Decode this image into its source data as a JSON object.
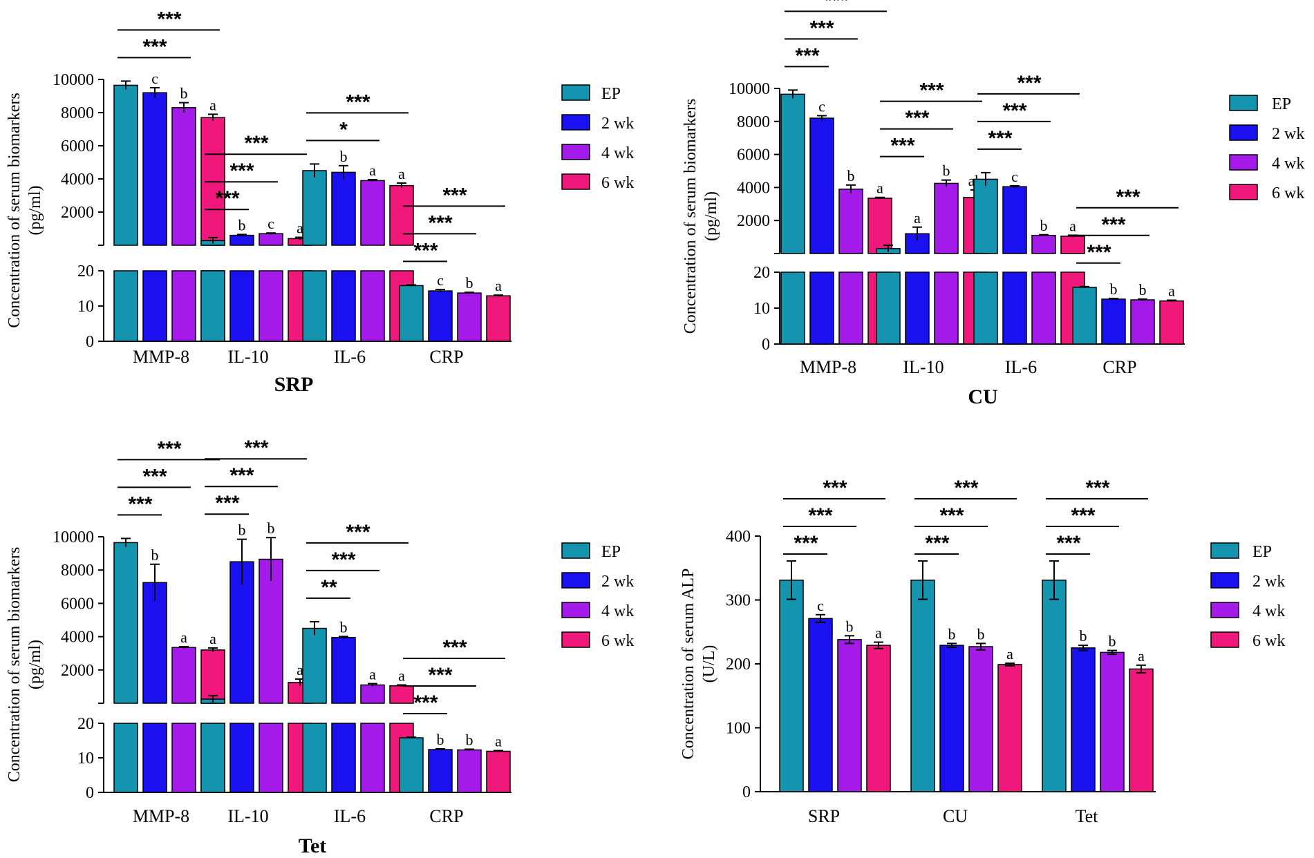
{
  "colors": {
    "EP": "#1494ae",
    "2 wk": "#1a10f0",
    "4 wk": "#a41ae8",
    "6 wk": "#f0187a"
  },
  "chart_data": [
    {
      "type": "bar",
      "title": "SRP",
      "ylabel": "Concentration of serum biomarkers (pg/ml)",
      "ylabel_lines": [
        "Concentration of serum biomarkers",
        "(pg/ml)"
      ],
      "categories": [
        "MMP-8",
        "IL-10",
        "IL-6",
        "CRP"
      ],
      "upper_ticks": [
        "10000",
        "8000",
        "6000",
        "4000",
        "2000"
      ],
      "lower_ticks": [
        "20",
        "10",
        "0"
      ],
      "series": [
        {
          "name": "EP",
          "values": [
            9650,
            280,
            4500,
            15.8
          ],
          "errors": [
            250,
            180,
            400,
            0.2
          ]
        },
        {
          "name": "2 wk",
          "values": [
            9200,
            600,
            4400,
            14.3
          ],
          "errors": [
            300,
            50,
            400,
            0.4
          ]
        },
        {
          "name": "4 wk",
          "values": [
            8300,
            700,
            3900,
            13.7
          ],
          "errors": [
            300,
            40,
            60,
            0.2
          ]
        },
        {
          "name": "6 wk",
          "values": [
            7700,
            400,
            3600,
            12.9
          ],
          "errors": [
            200,
            80,
            150,
            0.2
          ]
        }
      ],
      "letters": [
        [
          "",
          "c",
          "b",
          "a"
        ],
        [
          "",
          "b",
          "c",
          "a"
        ],
        [
          "",
          "b",
          "a",
          "a"
        ],
        [
          "",
          "c",
          "b",
          "a"
        ]
      ],
      "significance": [
        {
          "category": 0,
          "marks": [
            "***",
            "***"
          ]
        },
        {
          "category": 1,
          "marks": [
            "***",
            "***",
            "***"
          ]
        },
        {
          "category": 2,
          "marks": [
            "*",
            "***"
          ]
        },
        {
          "category": 3,
          "marks": [
            "***",
            "***",
            "***"
          ]
        }
      ],
      "legend": [
        "EP",
        "2 wk",
        "4 wk",
        "6 wk"
      ]
    },
    {
      "type": "bar",
      "title": "CU",
      "ylabel": "Concentration of serum biomarkers (pg/ml)",
      "ylabel_lines": [
        "Concentration of serum biomarkers",
        "(pg/ml)"
      ],
      "categories": [
        "MMP-8",
        "IL-10",
        "IL-6",
        "CRP"
      ],
      "upper_ticks": [
        "10000",
        "8000",
        "6000",
        "4000",
        "2000"
      ],
      "lower_ticks": [
        "20",
        "10",
        "0"
      ],
      "series": [
        {
          "name": "EP",
          "values": [
            9650,
            300,
            4500,
            15.8
          ],
          "errors": [
            250,
            200,
            400,
            0.2
          ]
        },
        {
          "name": "2 wk",
          "values": [
            8200,
            1200,
            4050,
            12.5
          ],
          "errors": [
            150,
            400,
            50,
            0.2
          ]
        },
        {
          "name": "4 wk",
          "values": [
            3900,
            4250,
            1100,
            12.3
          ],
          "errors": [
            250,
            200,
            40,
            0.2
          ]
        },
        {
          "name": "6 wk",
          "values": [
            3350,
            3400,
            1050,
            12.0
          ],
          "errors": [
            50,
            450,
            60,
            0.2
          ]
        }
      ],
      "letters": [
        [
          "",
          "c",
          "b",
          "a"
        ],
        [
          "",
          "a",
          "b",
          "ab"
        ],
        [
          "",
          "c",
          "b",
          "a"
        ],
        [
          "",
          "b",
          "b",
          "a"
        ]
      ],
      "significance": [
        {
          "category": 0,
          "marks": [
            "***",
            "***",
            "***"
          ]
        },
        {
          "category": 1,
          "marks": [
            "***",
            "***",
            "***"
          ]
        },
        {
          "category": 2,
          "marks": [
            "***",
            "***",
            "***"
          ]
        },
        {
          "category": 3,
          "marks": [
            "***",
            "***",
            "***"
          ]
        }
      ],
      "legend": [
        "EP",
        "2 wk",
        "4 wk",
        "6 wk"
      ]
    },
    {
      "type": "bar",
      "title": "Tet",
      "ylabel": "Concentration of serum biomarkers (pg/ml)",
      "ylabel_lines": [
        "Concentration of serum biomarkers",
        "(pg/ml)"
      ],
      "categories": [
        "MMP-8",
        "IL-10",
        "IL-6",
        "CRP"
      ],
      "upper_ticks": [
        "10000",
        "8000",
        "6000",
        "4000",
        "2000"
      ],
      "lower_ticks": [
        "20",
        "10",
        "0"
      ],
      "series": [
        {
          "name": "EP",
          "values": [
            9650,
            250,
            4500,
            15.8
          ],
          "errors": [
            250,
            200,
            400,
            0.2
          ]
        },
        {
          "name": "2 wk",
          "values": [
            7250,
            8500,
            3950,
            12.4
          ],
          "errors": [
            1100,
            1350,
            60,
            0.2
          ]
        },
        {
          "name": "4 wk",
          "values": [
            3350,
            8650,
            1100,
            12.3
          ],
          "errors": [
            50,
            1300,
            80,
            0.2
          ]
        },
        {
          "name": "6 wk",
          "values": [
            3200,
            1250,
            1050,
            11.9
          ],
          "errors": [
            120,
            200,
            50,
            0.2
          ]
        }
      ],
      "letters": [
        [
          "",
          "b",
          "a",
          "a"
        ],
        [
          "",
          "b",
          "b",
          "a"
        ],
        [
          "",
          "b",
          "a",
          "a"
        ],
        [
          "",
          "b",
          "b",
          "a"
        ]
      ],
      "significance": [
        {
          "category": 0,
          "marks": [
            "***",
            "***",
            "***"
          ]
        },
        {
          "category": 1,
          "marks": [
            "***",
            "***",
            "***"
          ]
        },
        {
          "category": 2,
          "marks": [
            "**",
            "***",
            "***"
          ]
        },
        {
          "category": 3,
          "marks": [
            "***",
            "***",
            "***"
          ]
        }
      ],
      "legend": [
        "EP",
        "2 wk",
        "4 wk",
        "6 wk"
      ]
    },
    {
      "type": "bar",
      "title": "",
      "ylabel": "Concentration of serum ALP (U/L)",
      "ylabel_lines": [
        "Concentration of serum ALP",
        "(U/L)"
      ],
      "categories": [
        "SRP",
        "CU",
        "Tet"
      ],
      "ylim": [
        0,
        400
      ],
      "yticks": [
        "0",
        "100",
        "200",
        "300",
        "400"
      ],
      "series": [
        {
          "name": "EP",
          "values": [
            331,
            331,
            331
          ],
          "errors": [
            30,
            30,
            30
          ]
        },
        {
          "name": "2 wk",
          "values": [
            271,
            229,
            225
          ],
          "errors": [
            6,
            3,
            4
          ]
        },
        {
          "name": "4 wk",
          "values": [
            238,
            227,
            218
          ],
          "errors": [
            6,
            5,
            3
          ]
        },
        {
          "name": "6 wk",
          "values": [
            229,
            199,
            192
          ],
          "errors": [
            5,
            2,
            6
          ]
        }
      ],
      "letters": [
        [
          "",
          "c",
          "b",
          "a"
        ],
        [
          "",
          "b",
          "b",
          "a"
        ],
        [
          "",
          "b",
          "b",
          "a"
        ]
      ],
      "significance": [
        {
          "category": 0,
          "marks": [
            "***",
            "***",
            "***"
          ]
        },
        {
          "category": 1,
          "marks": [
            "***",
            "***",
            "***"
          ]
        },
        {
          "category": 2,
          "marks": [
            "***",
            "***",
            "***"
          ]
        }
      ],
      "legend": [
        "EP",
        "2 wk",
        "4 wk",
        "6 wk"
      ]
    }
  ]
}
